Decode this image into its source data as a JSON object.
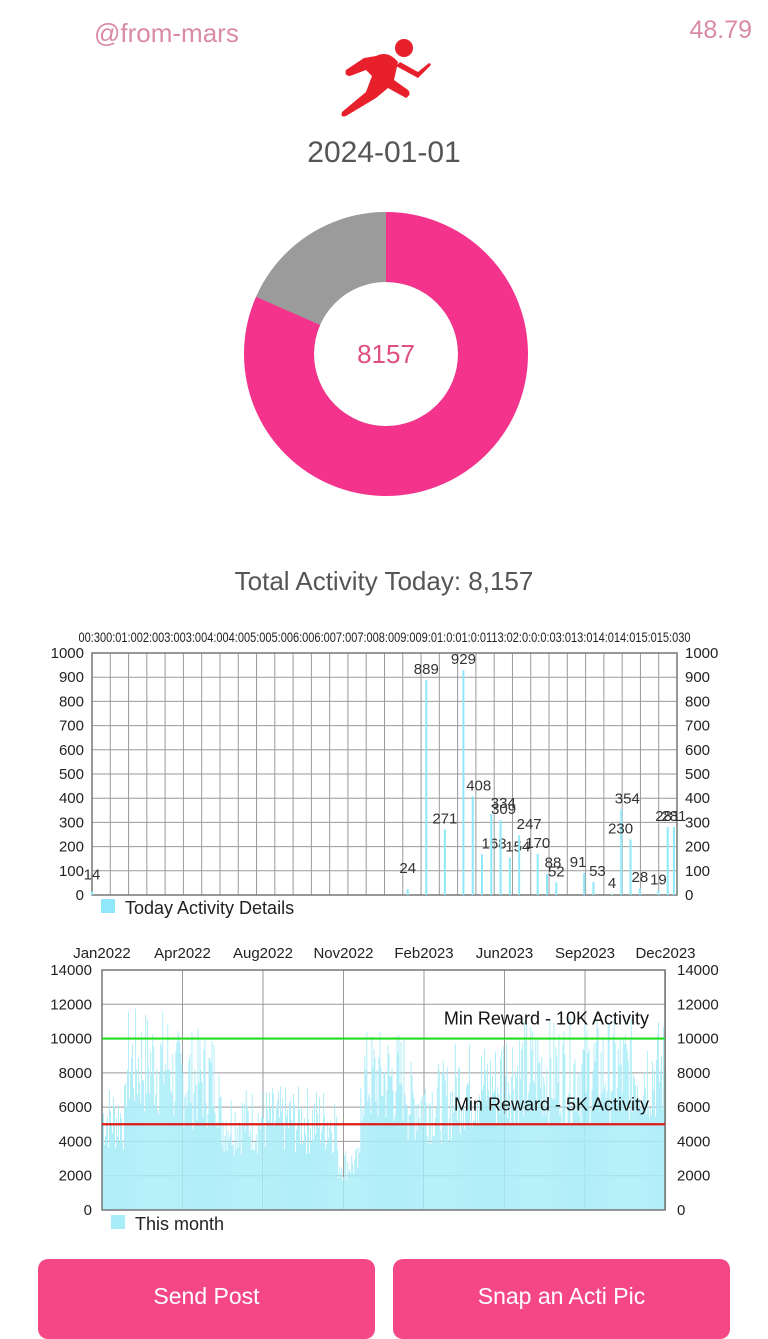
{
  "header": {
    "handle": "@from-mars",
    "balance": "48.79",
    "date": "2024-01-01",
    "runner_icon": "runner-icon"
  },
  "donut": {
    "center_value": "8157",
    "done_fraction": 0.8157,
    "colors": {
      "done": "#f4338c",
      "remaining": "#9b9b9b"
    }
  },
  "total_label": "Total Activity Today: 8,157",
  "chart_data": [
    {
      "type": "bar",
      "legend": "Today Activity Details",
      "top_ticks_text": "00:00 00:30 01:00 01:30 02:00 02:30 03:00 03:30 04:00 04:30 05:00 05:30 06:00 06:30 07:00 07:30 08:00 08:30 09:00 09:30 10:00 10:30 11:00 11:30 12:00 12:30 13:00 13:30 14:00 14:30 15:00 15:30",
      "top_ticks_rendered": "00:300:01:002:003:003:004:004:005:005:006:006:007:007:008:009:009:01:0:01:0:0113:02:0:0:0:03:013:014:014:015:015:030",
      "ylim": [
        0,
        1000
      ],
      "yticks": [
        0,
        100,
        200,
        300,
        400,
        500,
        600,
        700,
        800,
        900,
        1000
      ],
      "color": "#8fe8fa",
      "points": [
        {
          "t": "00:00",
          "v": 14
        },
        {
          "t": "08:30",
          "v": 24
        },
        {
          "t": "09:00",
          "v": 889
        },
        {
          "t": "09:30",
          "v": 271
        },
        {
          "t": "10:00",
          "v": 929
        },
        {
          "t": "10:15",
          "v": 408
        },
        {
          "t": "10:30",
          "v": 168
        },
        {
          "t": "10:45",
          "v": 334
        },
        {
          "t": "11:00",
          "v": 309
        },
        {
          "t": "11:15",
          "v": 154
        },
        {
          "t": "11:30",
          "v": 247
        },
        {
          "t": "12:00",
          "v": 170
        },
        {
          "t": "12:15",
          "v": 88
        },
        {
          "t": "12:30",
          "v": 52
        },
        {
          "t": "13:15",
          "v": 91
        },
        {
          "t": "13:30",
          "v": 53
        },
        {
          "t": "14:00",
          "v": 4
        },
        {
          "t": "14:15",
          "v": 354
        },
        {
          "t": "14:30",
          "v": 230
        },
        {
          "t": "14:45",
          "v": 28
        },
        {
          "t": "15:15",
          "v": 19
        },
        {
          "t": "15:30",
          "v": 281
        },
        {
          "t": "15:40",
          "v": 281
        }
      ]
    },
    {
      "type": "bar",
      "legend": "This month",
      "x_ticks": [
        "Jan2022",
        "Apr2022",
        "Aug2022",
        "Nov2022",
        "Feb2023",
        "Jun2023",
        "Sep2023",
        "Dec2023"
      ],
      "ylim": [
        0,
        14000
      ],
      "yticks": [
        0,
        2000,
        4000,
        6000,
        8000,
        10000,
        12000,
        14000
      ],
      "color": "#a8ecf8",
      "lines": [
        {
          "label": "Min Reward - 10K Activity",
          "y": 10000,
          "color": "#22dd22"
        },
        {
          "label": "Min Reward - 5K Activity",
          "y": 5000,
          "color": "#e01818"
        }
      ],
      "period_levels": [
        {
          "from": "Jan2022",
          "to": "Feb2022",
          "v": 6000
        },
        {
          "from": "Feb2022",
          "to": "Apr2022",
          "v": 9500
        },
        {
          "from": "Apr2022",
          "to": "Jun2022",
          "v": 8500
        },
        {
          "from": "Jun2022",
          "to": "Nov2022",
          "v": 5800
        },
        {
          "from": "Nov2022",
          "to": "Dec2022",
          "v": 3000
        },
        {
          "from": "Dec2022",
          "to": "Feb2023",
          "v": 8500
        },
        {
          "from": "Feb2023",
          "to": "Apr2023",
          "v": 7000
        },
        {
          "from": "Apr2023",
          "to": "Jun2023",
          "v": 8000
        },
        {
          "from": "Jun2023",
          "to": "Dec2023",
          "v": 9000
        }
      ]
    }
  ],
  "buttons": {
    "send_post": "Send Post",
    "snap_pic": "Snap an Acti Pic"
  }
}
